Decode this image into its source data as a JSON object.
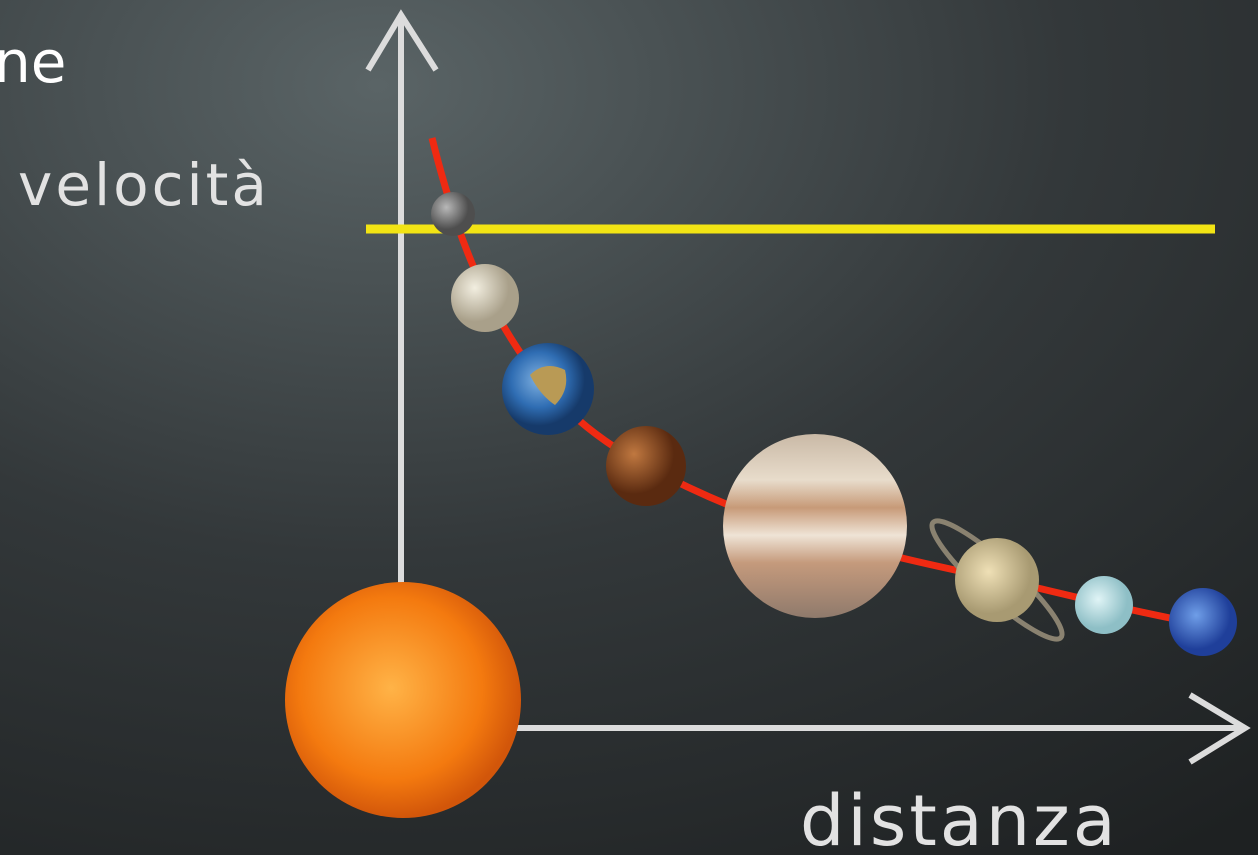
{
  "labels": {
    "corner_text": "ne",
    "y_axis": "velocità",
    "x_axis": "distanza"
  }
}
